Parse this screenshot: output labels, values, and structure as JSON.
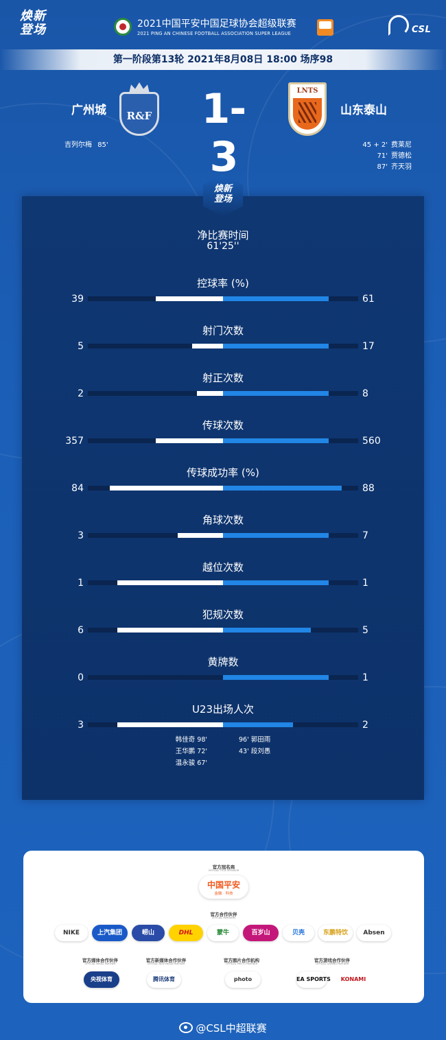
{
  "header": {
    "brand_line1": "焕新",
    "brand_line2": "登场",
    "league_title_cn": "2021中国平安中国足球协会超级联赛",
    "league_title_en": "2021 PING AN CHINESE FOOTBALL ASSOCIATION SUPER LEAGUE",
    "csl_text": "CSL"
  },
  "match_info": "第一阶段第13轮  2021年8月08日 18:00 场序98",
  "score": {
    "home_team": "广州城",
    "away_team": "山东泰山",
    "home_crest_text": "R&F",
    "away_crest_text": "LNTS",
    "score_text": "1-3",
    "home_scorers": [
      {
        "name": "吉列尔梅",
        "minute": "85'"
      }
    ],
    "away_scorers": [
      {
        "minute": "45 + 2'",
        "name": "费莱尼"
      },
      {
        "minute": "71'",
        "name": "贾德松"
      },
      {
        "minute": "87'",
        "name": "齐天羽"
      }
    ]
  },
  "panel": {
    "badge_line1": "焕新",
    "badge_line2": "登场",
    "duration_label": "净比赛时间",
    "duration_value": "61'25''"
  },
  "stats": [
    {
      "label": "控球率 (%)",
      "home": "39",
      "away": "61",
      "home_val": 39,
      "away_val": 61
    },
    {
      "label": "射门次数",
      "home": "5",
      "away": "17",
      "home_val": 5,
      "away_val": 17
    },
    {
      "label": "射正次数",
      "home": "2",
      "away": "8",
      "home_val": 2,
      "away_val": 8
    },
    {
      "label": "传球次数",
      "home": "357",
      "away": "560",
      "home_val": 357,
      "away_val": 560
    },
    {
      "label": "传球成功率 (%)",
      "home": "84",
      "away": "88",
      "home_val": 84,
      "away_val": 88
    },
    {
      "label": "角球次数",
      "home": "3",
      "away": "7",
      "home_val": 3,
      "away_val": 7
    },
    {
      "label": "越位次数",
      "home": "1",
      "away": "1",
      "home_val": 1,
      "away_val": 1
    },
    {
      "label": "犯规次数",
      "home": "6",
      "away": "5",
      "home_val": 6,
      "away_val": 5
    },
    {
      "label": "黄牌数",
      "home": "0",
      "away": "1",
      "home_val": 0,
      "away_val": 1
    },
    {
      "label": "U23出场人次",
      "home": "3",
      "away": "2",
      "home_val": 3,
      "away_val": 2
    }
  ],
  "u23": {
    "home": [
      {
        "name": "韩佳奇",
        "minute": "98'"
      },
      {
        "name": "王华鹏",
        "minute": "72'"
      },
      {
        "name": "温永骏",
        "minute": "67'"
      }
    ],
    "away": [
      {
        "minute": "96'",
        "name": "郭田雨"
      },
      {
        "minute": "43'",
        "name": "段刘愚"
      }
    ]
  },
  "sponsors": {
    "title_sponsor_heading": "官方冠名商",
    "title_sponsor_sub": "OFFICIAL TITLE SPONSOR",
    "title_sponsor_name": "中国平安",
    "title_sponsor_tagline": "金融 · 科技",
    "partners_heading": "官方合作伙伴",
    "partners_sub": "OFFICIAL PARTNERS",
    "partners": [
      "NIKE",
      "上汽集团",
      "崂山",
      "DHL",
      "蒙牛",
      "百岁山",
      "贝壳",
      "东鹏特饮",
      "Absen"
    ],
    "media_groups": [
      {
        "heading": "官方媒体合作伙伴",
        "sub": "OFFICIAL MEDIA PARTNER",
        "logo": "央视体育"
      },
      {
        "heading": "官方新媒体合作伙伴",
        "sub": "OFFICIAL NEW MEDIA PARTNER",
        "logo": "腾讯体育"
      },
      {
        "heading": "官方图片合作机构",
        "sub": "OFFICIAL PHOTO PARTNER",
        "logo": "photo"
      },
      {
        "heading": "官方游戏合作伙伴",
        "sub": "OFFICIAL GAMING PARTNER",
        "logo": "EA SPORTS"
      }
    ],
    "konami": "KONAMI"
  },
  "footer": "@CSL中超联赛",
  "colors": {
    "background": "#1b5fb8",
    "panel": "#0f3772",
    "home_bar": "#ffffff",
    "away_bar": "#2186e6"
  }
}
